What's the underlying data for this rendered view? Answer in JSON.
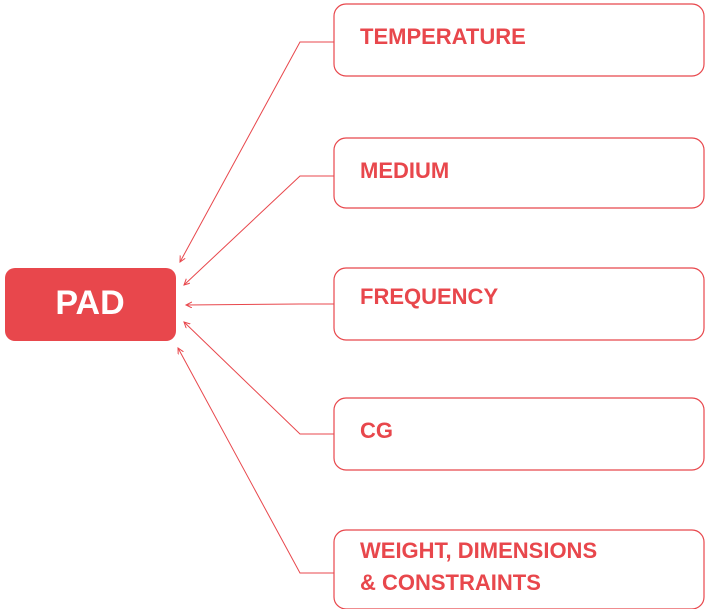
{
  "center": {
    "label": "PAD"
  },
  "nodes": [
    {
      "label": "TEMPERATURE"
    },
    {
      "label": "MEDIUM"
    },
    {
      "label": "FREQUENCY"
    },
    {
      "label": "CG"
    },
    {
      "label": "WEIGHT, DIMENSIONS\n& CONSTRAINTS"
    }
  ]
}
